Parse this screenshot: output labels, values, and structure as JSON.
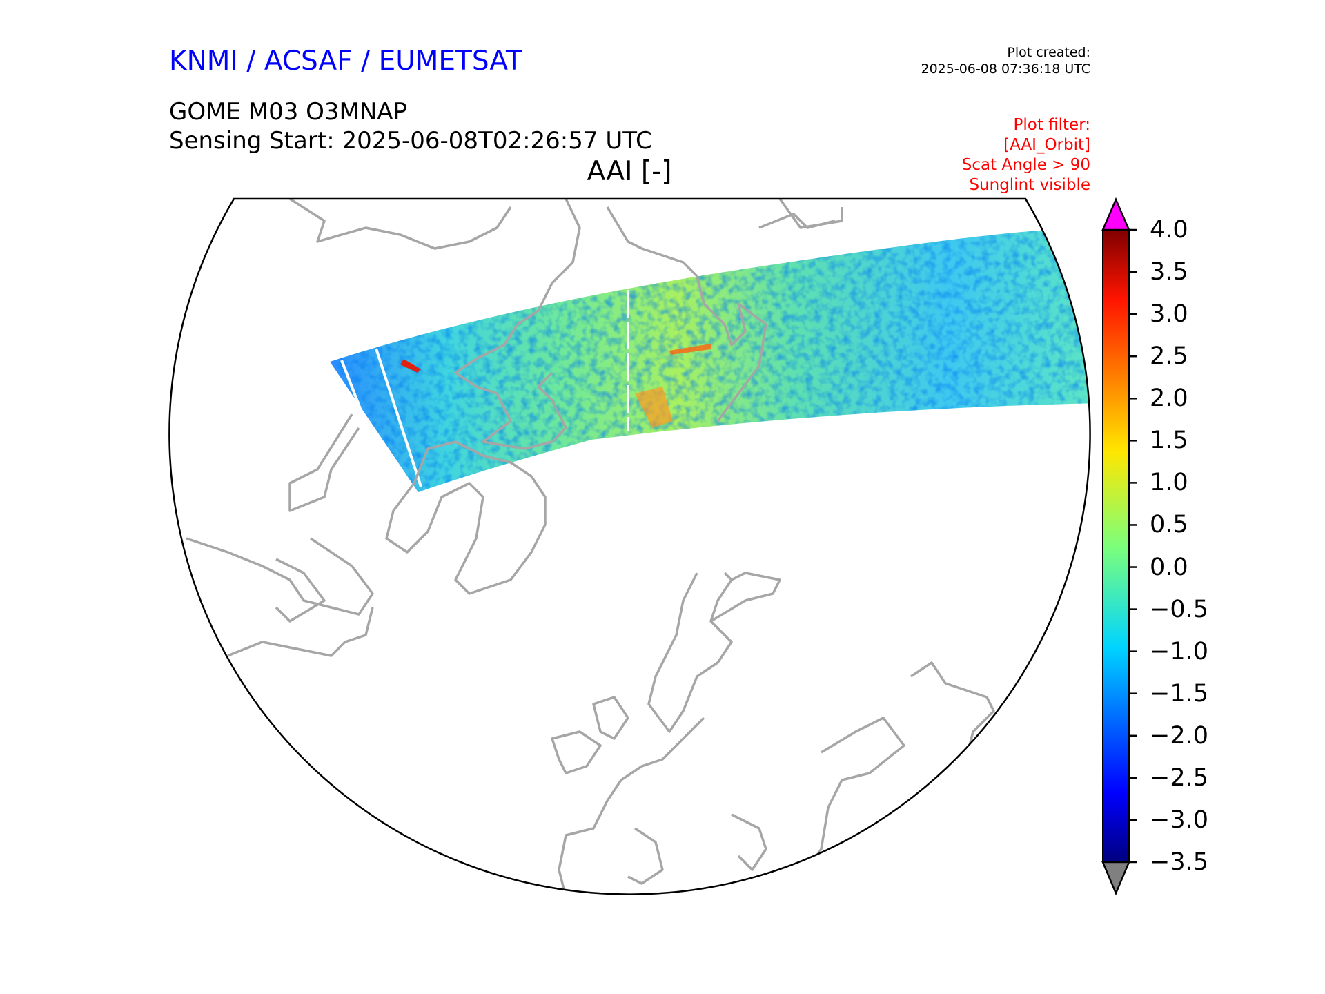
{
  "header": {
    "organization": "KNMI / ACSAF / EUMETSAT",
    "product": "GOME M03 O3MNAP",
    "sensing_start": "Sensing Start: 2025-06-08T02:26:57 UTC",
    "plot_title": "AAI [-]",
    "created_label": "Plot created:",
    "created_time": "2025-06-08 07:36:18 UTC",
    "filter_lines": [
      "Plot filter:",
      "[AAI_Orbit]",
      "Scat Angle > 90",
      "Sunglint visible"
    ]
  },
  "chart_data": {
    "type": "heatmap",
    "title": "AAI [-]",
    "projection": "north polar stereographic",
    "variable": "AAI",
    "colormap": "jet",
    "vmin": -3.5,
    "vmax": 4.0,
    "colorbar": {
      "ticks": [
        "4.0",
        "3.5",
        "3.0",
        "2.5",
        "2.0",
        "1.5",
        "1.0",
        "0.5",
        "0.0",
        "−0.5",
        "−1.0",
        "−1.5",
        "−2.0",
        "−2.5",
        "−3.0",
        "−3.5"
      ],
      "tick_values": [
        4.0,
        3.5,
        3.0,
        2.5,
        2.0,
        1.5,
        1.0,
        0.5,
        0.0,
        -0.5,
        -1.0,
        -1.5,
        -2.0,
        -2.5,
        -3.0,
        -3.5
      ],
      "over_color": "#ff00ff",
      "under_color": "#808080",
      "extend": "both"
    },
    "coastline_color": "#a6a6a6"
  }
}
